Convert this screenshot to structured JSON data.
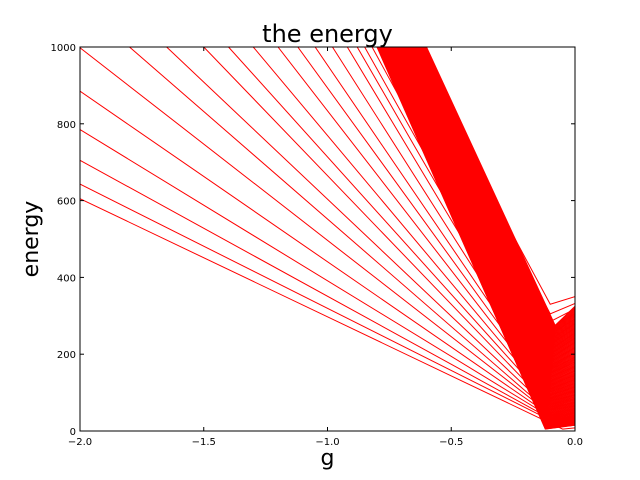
{
  "chart_data": {
    "type": "line",
    "title": "the energy",
    "xlabel": "g",
    "ylabel": "energy",
    "xlim": [
      -2.0,
      0.0
    ],
    "ylim": [
      0,
      1000
    ],
    "xticks": [
      -2.0,
      -1.5,
      -1.0,
      -0.5,
      0.0
    ],
    "xtick_labels": [
      "−2.0",
      "−1.5",
      "−1.0",
      "−0.5",
      "0.0"
    ],
    "yticks": [
      0,
      200,
      400,
      600,
      800,
      1000
    ],
    "ytick_labels": [
      "0",
      "200",
      "400",
      "600",
      "800",
      "1000"
    ],
    "line_color": "#ff0000",
    "grid": false,
    "legend": "none",
    "series": [
      {
        "x": [
          -2.0,
          -0.05,
          0.0
        ],
        "y": [
          605,
          5,
          8
        ]
      },
      {
        "x": [
          -2.0,
          -0.05,
          0.0
        ],
        "y": [
          643,
          12,
          15
        ]
      },
      {
        "x": [
          -2.0,
          -0.06,
          0.0
        ],
        "y": [
          705,
          18,
          22
        ]
      },
      {
        "x": [
          -2.0,
          -0.07,
          0.0
        ],
        "y": [
          785,
          25,
          30
        ]
      },
      {
        "x": [
          -2.0,
          -0.08,
          0.0
        ],
        "y": [
          885,
          32,
          38
        ]
      },
      {
        "x": [
          -2.0,
          -0.09,
          0.0
        ],
        "y": [
          998,
          40,
          47
        ]
      },
      {
        "x": [
          -1.8,
          -0.1,
          0.0
        ],
        "y": [
          1000,
          48,
          56
        ]
      },
      {
        "x": [
          -1.65,
          -0.1,
          0.0
        ],
        "y": [
          1000,
          55,
          65
        ]
      },
      {
        "x": [
          -1.5,
          -0.1,
          0.0
        ],
        "y": [
          1000,
          62,
          74
        ]
      },
      {
        "x": [
          -1.4,
          -0.1,
          0.0
        ],
        "y": [
          1000,
          70,
          84
        ]
      },
      {
        "x": [
          -1.3,
          -0.1,
          0.0
        ],
        "y": [
          1000,
          78,
          94
        ]
      },
      {
        "x": [
          -1.2,
          -0.1,
          0.0
        ],
        "y": [
          1000,
          86,
          104
        ]
      },
      {
        "x": [
          -1.12,
          -0.1,
          0.0
        ],
        "y": [
          1000,
          94,
          114
        ]
      },
      {
        "x": [
          -1.05,
          -0.1,
          0.0
        ],
        "y": [
          1000,
          102,
          124
        ]
      },
      {
        "x": [
          -0.98,
          -0.1,
          0.0
        ],
        "y": [
          1000,
          110,
          134
        ]
      },
      {
        "x": [
          -0.92,
          -0.1,
          0.0
        ],
        "y": [
          1000,
          120,
          145
        ]
      },
      {
        "x": [
          -0.88,
          -0.1,
          0.0
        ],
        "y": [
          1000,
          130,
          156
        ]
      },
      {
        "x": [
          -0.85,
          -0.1,
          0.0
        ],
        "y": [
          1000,
          140,
          168
        ]
      },
      {
        "x": [
          -0.82,
          -0.1,
          0.0
        ],
        "y": [
          1000,
          150,
          180
        ]
      },
      {
        "x": [
          -0.8,
          -0.1,
          0.0
        ],
        "y": [
          1000,
          160,
          192
        ]
      },
      {
        "x": [
          -0.78,
          -0.1,
          0.0
        ],
        "y": [
          1000,
          170,
          205
        ]
      },
      {
        "x": [
          -0.76,
          -0.1,
          0.0
        ],
        "y": [
          1000,
          180,
          218
        ]
      },
      {
        "x": [
          -0.75,
          -0.1,
          0.0
        ],
        "y": [
          1000,
          190,
          230
        ]
      },
      {
        "x": [
          -0.74,
          -0.1,
          0.0
        ],
        "y": [
          1000,
          200,
          242
        ]
      },
      {
        "x": [
          -0.73,
          -0.1,
          0.0
        ],
        "y": [
          1000,
          212,
          255
        ]
      },
      {
        "x": [
          -0.72,
          -0.1,
          0.0
        ],
        "y": [
          1000,
          225,
          268
        ]
      },
      {
        "x": [
          -0.71,
          -0.1,
          0.0
        ],
        "y": [
          1000,
          238,
          280
        ]
      },
      {
        "x": [
          -0.7,
          -0.1,
          0.0
        ],
        "y": [
          1000,
          252,
          292
        ]
      },
      {
        "x": [
          -0.69,
          -0.1,
          0.0
        ],
        "y": [
          1000,
          268,
          305
        ]
      },
      {
        "x": [
          -0.68,
          -0.1,
          0.0
        ],
        "y": [
          1000,
          285,
          318
        ]
      },
      {
        "x": [
          -0.67,
          -0.1,
          0.0
        ],
        "y": [
          1000,
          305,
          332
        ]
      },
      {
        "x": [
          -0.66,
          -0.1,
          0.0
        ],
        "y": [
          1000,
          330,
          350
        ]
      }
    ]
  }
}
